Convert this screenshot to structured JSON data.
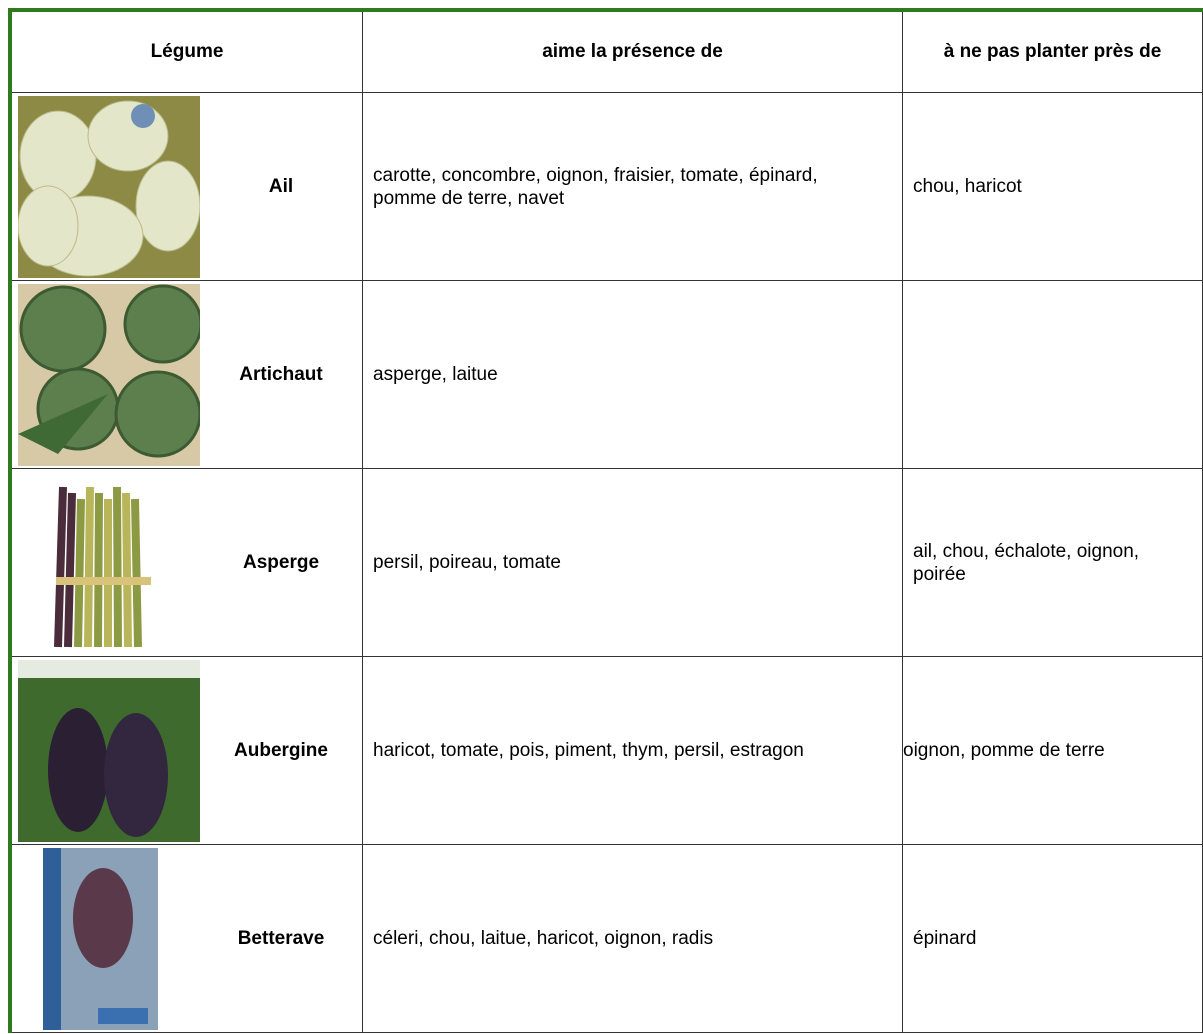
{
  "table": {
    "header": [
      "Légume",
      "aime la présence de",
      "à ne pas planter près de"
    ],
    "rows": [
      {
        "name": "Ail",
        "likes": "carotte, concombre, oignon, fraisier, tomate, épinard, pomme de terre, navet",
        "avoid": "chou, haricot"
      },
      {
        "name": "Artichaut",
        "likes": "asperge, laitue"
      },
      {
        "name": "Asperge",
        "likes": "persil, poireau, tomate",
        "avoid": "ail, chou, échalote, oignon, poirée"
      },
      {
        "name": "Aubergine",
        "likes": "haricot, tomate, pois, piment, thym, persil, estragon",
        "avoid": "oignon, pomme de terre"
      },
      {
        "name": "Betterave",
        "likes": "céleri, chou, laitue, haricot, oignon, radis",
        "avoid": "épinard"
      }
    ]
  }
}
